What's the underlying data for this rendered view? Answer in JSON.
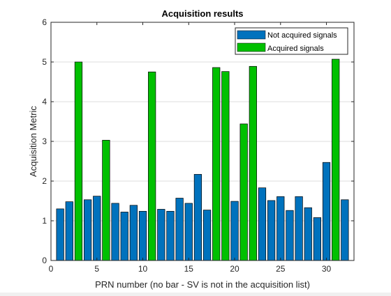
{
  "chart_data": {
    "type": "bar",
    "title": "Acquisition results",
    "xlabel": "PRN number (no bar - SV is not in the acquisition list)",
    "ylabel": "Acquisition Metric",
    "xlim": [
      0,
      33
    ],
    "ylim": [
      0,
      6
    ],
    "xticks": [
      0,
      5,
      10,
      15,
      20,
      25,
      30
    ],
    "yticks": [
      0,
      1,
      2,
      3,
      4,
      5,
      6
    ],
    "grid": "y-major",
    "legend_position": "top-right",
    "series": [
      {
        "name": "Not acquired signals",
        "color": "#0072BD",
        "points": [
          [
            1,
            1.3
          ],
          [
            2,
            1.48
          ],
          [
            4,
            1.53
          ],
          [
            5,
            1.62
          ],
          [
            7,
            1.44
          ],
          [
            8,
            1.22
          ],
          [
            9,
            1.39
          ],
          [
            10,
            1.24
          ],
          [
            12,
            1.29
          ],
          [
            13,
            1.24
          ],
          [
            14,
            1.57
          ],
          [
            15,
            1.44
          ],
          [
            16,
            2.17
          ],
          [
            17,
            1.27
          ],
          [
            20,
            1.49
          ],
          [
            23,
            1.83
          ],
          [
            24,
            1.51
          ],
          [
            25,
            1.61
          ],
          [
            26,
            1.26
          ],
          [
            27,
            1.61
          ],
          [
            28,
            1.33
          ],
          [
            29,
            1.08
          ],
          [
            30,
            2.47
          ],
          [
            32,
            1.53
          ]
        ]
      },
      {
        "name": "Acquired signals",
        "color": "#00C000",
        "points": [
          [
            3,
            5.0
          ],
          [
            6,
            3.03
          ],
          [
            11,
            4.75
          ],
          [
            18,
            4.86
          ],
          [
            19,
            4.76
          ],
          [
            21,
            3.44
          ],
          [
            22,
            4.89
          ],
          [
            31,
            5.07
          ]
        ]
      }
    ]
  }
}
